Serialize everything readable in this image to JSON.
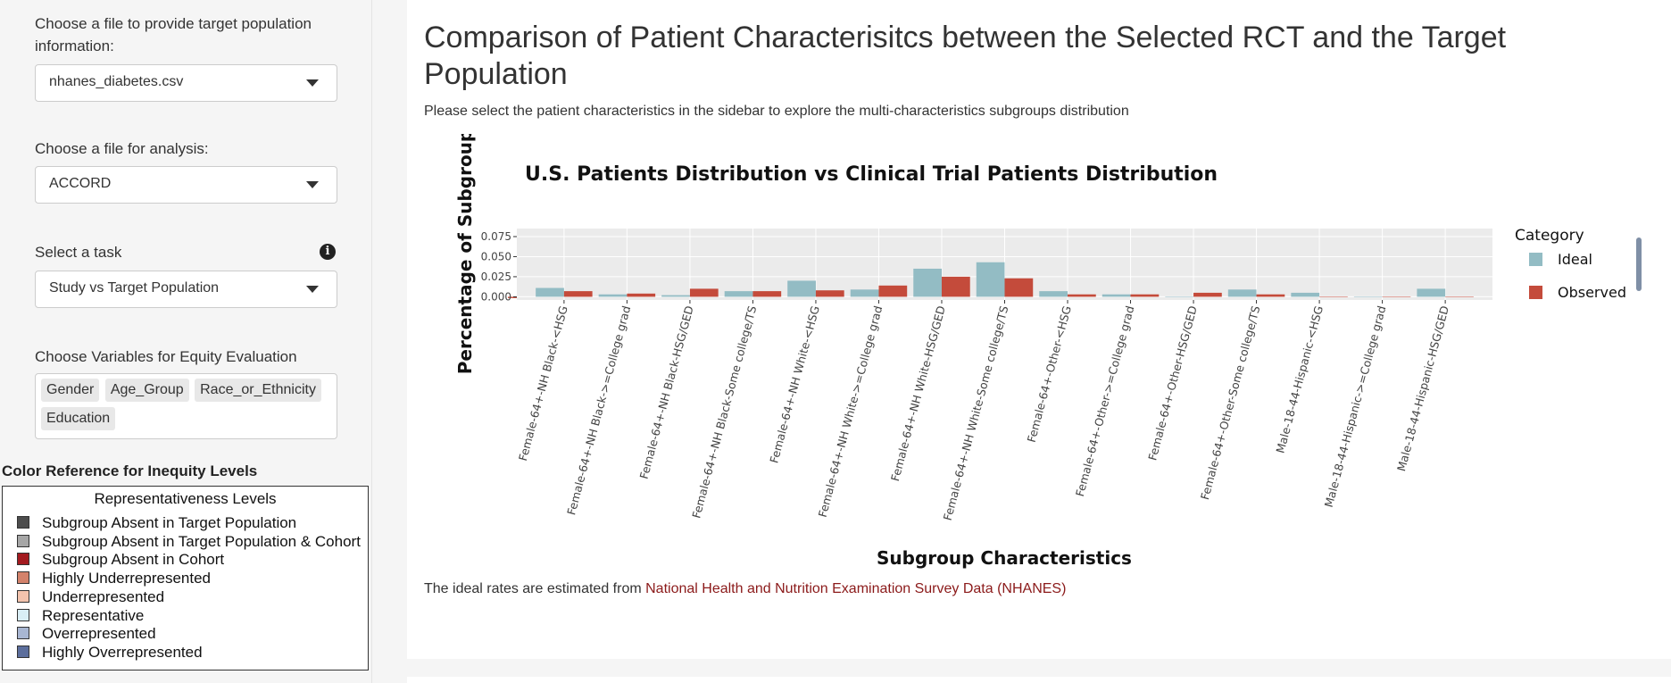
{
  "sidebar": {
    "target_file_label": "Choose a file to provide target population information:",
    "target_file_value": "nhanes_diabetes.csv",
    "analysis_file_label": "Choose a file for analysis:",
    "analysis_file_value": "ACCORD",
    "task_label": "Select a task",
    "task_info_icon": "info-icon",
    "task_value": "Study vs Target Population",
    "variables_label": "Choose Variables for Equity Evaluation",
    "variables": [
      "Gender",
      "Age_Group",
      "Race_or_Ethnicity",
      "Education"
    ],
    "color_ref_title": "Color Reference for Inequity Levels",
    "legend_title": "Representativeness Levels",
    "legend_items": [
      {
        "label": "Subgroup Absent in Target Population",
        "color": "#4d4d4d"
      },
      {
        "label": "Subgroup Absent in Target Population & Cohort",
        "color": "#a6a6a6"
      },
      {
        "label": "Subgroup Absent in Cohort",
        "color": "#a31a1f"
      },
      {
        "label": "Highly Underrepresented",
        "color": "#d3826b"
      },
      {
        "label": "Underrepresented",
        "color": "#f3c3ad"
      },
      {
        "label": "Representative",
        "color": "#d9eef5"
      },
      {
        "label": "Overrepresented",
        "color": "#a8b6d2"
      },
      {
        "label": "Highly Overrepresented",
        "color": "#5c6e9c"
      }
    ]
  },
  "main": {
    "title": "Comparison of Patient Characterisitcs between the Selected RCT and the Target Population",
    "subtitle": "Please select the patient characteristics in the sidebar to explore the multi-characteristics subgroups distribution",
    "footnote_prefix": "The ideal rates are estimated from ",
    "footnote_link": "National Health and Nutrition Examination Survey Data (NHANES)"
  },
  "chart_data": {
    "type": "bar",
    "title": "U.S. Patients Distribution vs Clinical Trial Patients Distribution",
    "xlabel": "Subgroup Characteristics",
    "ylabel": "Percentage of Subgroup",
    "ylim": [
      -0.004,
      0.085
    ],
    "yticks": [
      "0.000",
      "0.025",
      "0.050",
      "0.075"
    ],
    "legend_title": "Category",
    "legend_position": "right",
    "colors": {
      "Ideal": "#93bcc4",
      "Observed": "#c44b3b"
    },
    "categories": [
      "Female-64+-NH Black-<HSG",
      "Female-64+-NH Black->=College grad",
      "Female-64+-NH Black-HSG/GED",
      "Female-64+-NH Black-Some college/TS",
      "Female-64+-NH White-<HSG",
      "Female-64+-NH White->=College grad",
      "Female-64+-NH White-HSG/GED",
      "Female-64+-NH White-Some college/TS",
      "Female-64+-Other-<HSG",
      "Female-64+-Other->=College grad",
      "Female-64+-Other-HSG/GED",
      "Female-64+-Other-Some college/TS",
      "Male-18-44-Hispanic-<HSG",
      "Male-18-44-Hispanic->=College grad",
      "Male-18-44-Hispanic-HSG/GED"
    ],
    "series": [
      {
        "name": "Ideal",
        "values": [
          0.011,
          0.003,
          0.002,
          0.007,
          0.02,
          0.009,
          0.035,
          0.043,
          0.007,
          0.003,
          0.0,
          0.009,
          0.005,
          0.0,
          0.01
        ]
      },
      {
        "name": "Observed",
        "values": [
          0.007,
          0.004,
          0.01,
          0.007,
          0.008,
          0.014,
          0.025,
          0.023,
          0.003,
          0.003,
          0.005,
          0.003,
          0.0,
          0.0,
          0.0
        ]
      }
    ]
  }
}
